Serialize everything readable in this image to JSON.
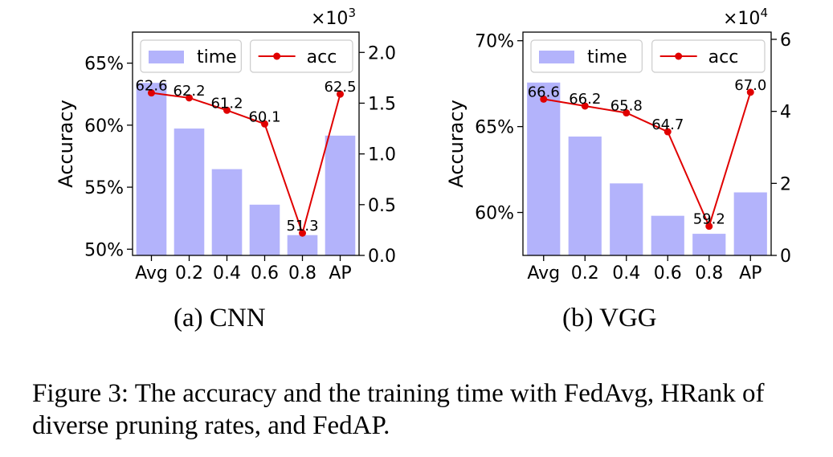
{
  "chart_data": [
    {
      "type": "bar+line",
      "caption": "(a) CNN",
      "categories": [
        "Avg",
        "0.2",
        "0.4",
        "0.6",
        "0.8",
        "AP"
      ],
      "left_axis": {
        "label": "Accuracy",
        "ylim": [
          49.5,
          67.5
        ],
        "ticks": [
          50,
          55,
          60,
          65
        ],
        "tick_labels": [
          "50%",
          "55%",
          "60%",
          "65%"
        ]
      },
      "right_axis": {
        "ylim": [
          0,
          2.2
        ],
        "ticks": [
          0.0,
          0.5,
          1.0,
          1.5,
          2.0
        ],
        "tick_labels": [
          "0.0",
          "0.5",
          "1.0",
          "1.5",
          "2.0"
        ],
        "multiplier": "×10",
        "multiplier_exp": "3"
      },
      "series": [
        {
          "name": "time",
          "kind": "bar",
          "axis": "right",
          "color": "#b3b3fb",
          "values": [
            1.7,
            1.25,
            0.85,
            0.5,
            0.2,
            1.18
          ]
        },
        {
          "name": "acc",
          "kind": "line",
          "axis": "left",
          "color": "#e00000",
          "values": [
            62.6,
            62.2,
            61.2,
            60.1,
            51.3,
            62.5
          ],
          "labels": [
            "62.6",
            "62.2",
            "61.2",
            "60.1",
            "51.3",
            "62.5"
          ]
        }
      ],
      "legend": "top"
    },
    {
      "type": "bar+line",
      "caption": "(b) VGG",
      "categories": [
        "Avg",
        "0.2",
        "0.4",
        "0.6",
        "0.8",
        "AP"
      ],
      "left_axis": {
        "label": "Accuracy",
        "ylim": [
          57.5,
          70.5
        ],
        "ticks": [
          60,
          65,
          70
        ],
        "tick_labels": [
          "60%",
          "65%",
          "70%"
        ]
      },
      "right_axis": {
        "ylim": [
          0,
          6.2
        ],
        "ticks": [
          0,
          2,
          4,
          6
        ],
        "tick_labels": [
          "0",
          "2",
          "4",
          "6"
        ],
        "multiplier": "×10",
        "multiplier_exp": "4"
      },
      "series": [
        {
          "name": "time",
          "kind": "bar",
          "axis": "right",
          "color": "#b3b3fb",
          "values": [
            4.8,
            3.3,
            2.0,
            1.1,
            0.6,
            1.75
          ]
        },
        {
          "name": "acc",
          "kind": "line",
          "axis": "left",
          "color": "#e00000",
          "values": [
            66.6,
            66.2,
            65.8,
            64.7,
            59.2,
            67.0
          ],
          "labels": [
            "66.6",
            "66.2",
            "65.8",
            "64.7",
            "59.2",
            "67.0"
          ]
        }
      ],
      "legend": "top"
    }
  ],
  "figure_caption": "Figure 3: The accuracy and the training time with FedAvg, HRank of diverse pruning rates, and FedAP."
}
